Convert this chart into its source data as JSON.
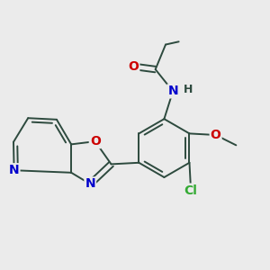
{
  "background_color": "#ebebeb",
  "bond_color": "#2d4a3e",
  "atom_colors": {
    "O": "#cc0000",
    "N": "#0000cc",
    "Cl": "#33aa33",
    "C": "#2d4a3e"
  },
  "figsize": [
    3.0,
    3.0
  ],
  "dpi": 100
}
